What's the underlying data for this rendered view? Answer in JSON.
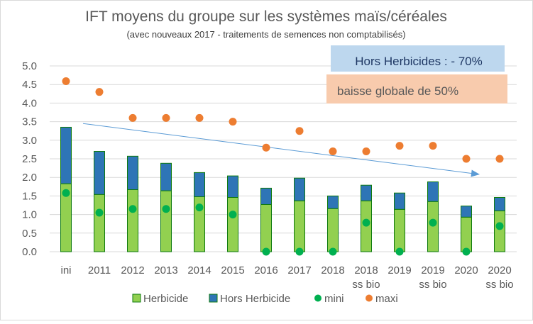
{
  "chart_data": {
    "type": "bar",
    "stacked": true,
    "title": "IFT moyens du groupe sur les systèmes maïs/céréales",
    "subtitle": "(avec nouveaux 2017 - traitements de semences non comptabilisés)",
    "xlabel": "",
    "ylabel": "",
    "ylim": [
      0,
      5
    ],
    "yticks": [
      "0.0",
      "0.5",
      "1.0",
      "1.5",
      "2.0",
      "2.5",
      "3.0",
      "3.5",
      "4.0",
      "4.5",
      "5.0"
    ],
    "grid": true,
    "legend_position": "bottom",
    "categories": [
      "ini",
      "2011",
      "2012",
      "2013",
      "2014",
      "2015",
      "2016",
      "2017",
      "2018",
      "2018 ss bio",
      "2019",
      "2019 ss bio",
      "2020",
      "2020 ss bio"
    ],
    "series": [
      {
        "name": "Herbicide",
        "type": "bar",
        "color": "#92D050",
        "values": [
          1.83,
          1.54,
          1.67,
          1.64,
          1.48,
          1.46,
          1.27,
          1.37,
          1.16,
          1.37,
          1.14,
          1.35,
          0.93,
          1.1
        ]
      },
      {
        "name": "Hors Herbicide",
        "type": "bar",
        "color": "#2E75B6",
        "values": [
          1.52,
          1.16,
          0.9,
          0.74,
          0.65,
          0.58,
          0.44,
          0.61,
          0.34,
          0.42,
          0.44,
          0.53,
          0.3,
          0.36
        ]
      },
      {
        "name": "mini",
        "type": "scatter",
        "color": "#00B050",
        "values": [
          1.58,
          1.05,
          1.15,
          1.15,
          1.19,
          1.0,
          0,
          0,
          0,
          0.78,
          0,
          0.78,
          0,
          0.69
        ]
      },
      {
        "name": "maxi",
        "type": "scatter",
        "color": "#ED7D31",
        "values": [
          4.59,
          4.3,
          3.6,
          3.6,
          3.6,
          3.5,
          2.8,
          3.25,
          2.7,
          2.7,
          2.85,
          2.85,
          2.5,
          2.5
        ]
      }
    ],
    "annotations": {
      "hors_herbicides": "Hors Herbicides  : - 70%",
      "baisse_globale": "baisse globale de 50%",
      "trend_arrow": {
        "from_category": "2011",
        "from_value": 3.45,
        "to_category": "2020 ss bio",
        "to_value": 2.08
      }
    },
    "colors": {
      "bar_border": "#0E7A0E",
      "arrow": "#5B9BD5",
      "box_blue": "#BDD7EE",
      "box_orange": "#F8CBAD",
      "box_blue_text": "#1F3864",
      "text": "#595959"
    }
  }
}
